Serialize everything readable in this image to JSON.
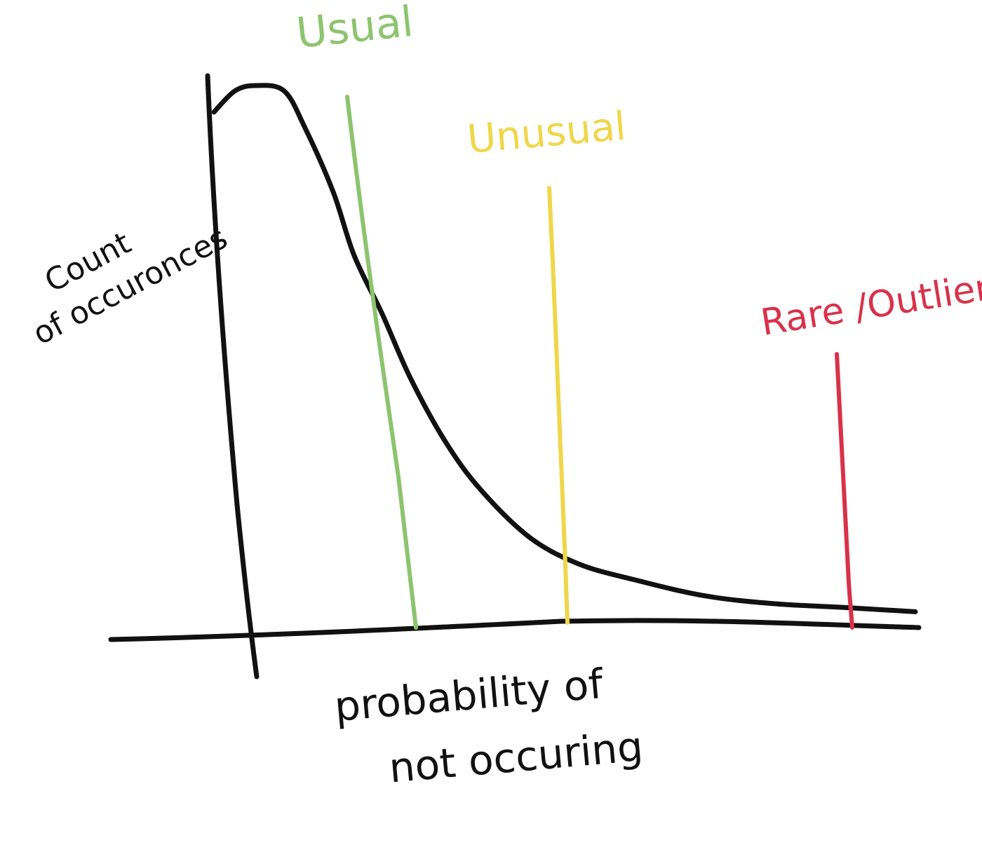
{
  "chart_data": {
    "type": "line",
    "title": "",
    "xlabel": [
      "probability of",
      "not occuring"
    ],
    "ylabel": [
      "Count",
      "of occuronces"
    ],
    "grid": false,
    "colors": {
      "axes": "#111111",
      "curve": "#111111",
      "usual": "#8cc46e",
      "unusual": "#f0d64a",
      "rare": "#d8324a"
    },
    "series": [
      {
        "kind": "right-skewed distribution curve",
        "x": [
          0.0,
          0.03,
          0.06,
          0.1,
          0.13,
          0.17,
          0.2,
          0.24,
          0.28,
          0.33,
          0.38,
          0.45,
          0.52,
          0.6,
          0.7,
          0.8,
          0.9,
          1.0
        ],
        "y": [
          0.95,
          0.99,
          1.0,
          0.99,
          0.92,
          0.8,
          0.68,
          0.57,
          0.45,
          0.33,
          0.24,
          0.15,
          0.1,
          0.07,
          0.04,
          0.025,
          0.018,
          0.01
        ]
      }
    ],
    "thresholds": [
      {
        "label": "Usual",
        "x": 0.2,
        "color": "#8cc46e"
      },
      {
        "label": "Unusual",
        "x": 0.4,
        "color": "#f0d64a"
      },
      {
        "label": "Rare /Outlier",
        "x": 0.81,
        "color": "#d8324a"
      }
    ]
  }
}
